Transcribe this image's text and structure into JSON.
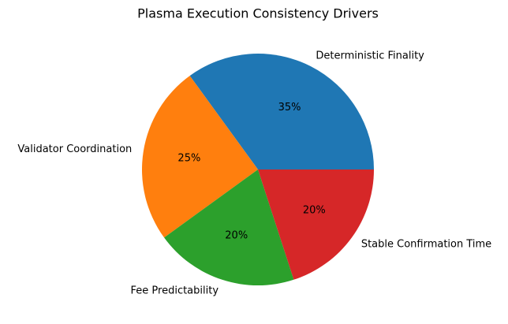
{
  "chart_data": {
    "type": "pie",
    "title": "Plasma Execution Consistency Drivers",
    "categories": [
      "Deterministic Finality",
      "Validator Coordination",
      "Fee Predictability",
      "Stable Confirmation Time"
    ],
    "values": [
      35,
      25,
      20,
      20
    ],
    "value_labels": [
      "35%",
      "25%",
      "20%",
      "20%"
    ],
    "colors": [
      "#1f77b4",
      "#ff7f0e",
      "#2ca02c",
      "#d62728"
    ]
  }
}
